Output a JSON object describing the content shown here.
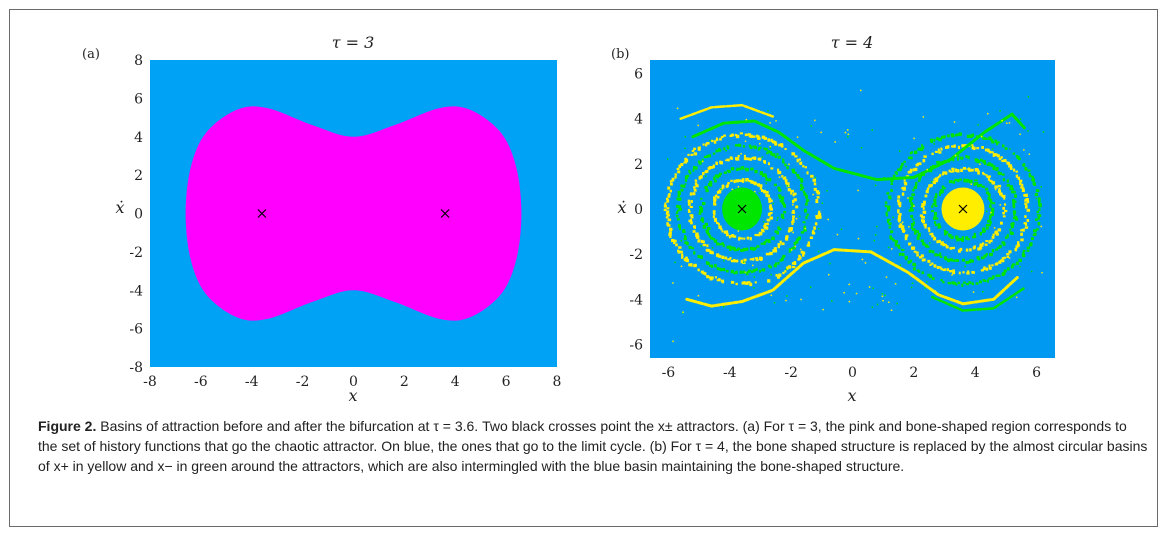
{
  "chart_data": [
    {
      "type": "heatmap",
      "panel_label": "(a)",
      "title": "τ = 3",
      "xlabel": "x",
      "ylabel": "ẋ",
      "xlim": [
        -8,
        8
      ],
      "ylim": [
        -8,
        8
      ],
      "xticks": [
        -8,
        -6,
        -4,
        -2,
        0,
        2,
        4,
        6,
        8
      ],
      "yticks": [
        -8,
        -6,
        -4,
        -2,
        0,
        2,
        4,
        6,
        8
      ],
      "colors": {
        "background_basin": "#00a2f6",
        "bone_basin": "#ff00ff",
        "marker": "#000000"
      },
      "regions": [
        {
          "basin": "limit cycle",
          "color": "#00a2f6"
        },
        {
          "basin": "chaotic attractor",
          "color": "#ff00ff",
          "shape": "bone",
          "outline": [
            [
              -6.6,
              0
            ],
            [
              -6.4,
              2.4
            ],
            [
              -5.8,
              4.2
            ],
            [
              -4.6,
              5.4
            ],
            [
              -3.4,
              5.5
            ],
            [
              -1.6,
              4.6
            ],
            [
              0,
              4
            ],
            [
              1.6,
              4.6
            ],
            [
              3.4,
              5.5
            ],
            [
              4.6,
              5.4
            ],
            [
              5.8,
              4.2
            ],
            [
              6.4,
              2.4
            ],
            [
              6.6,
              0
            ],
            [
              6.4,
              -2.4
            ],
            [
              5.8,
              -4.2
            ],
            [
              4.6,
              -5.4
            ],
            [
              3.4,
              -5.5
            ],
            [
              1.6,
              -4.6
            ],
            [
              0,
              -4
            ],
            [
              -1.6,
              -4.6
            ],
            [
              -3.4,
              -5.5
            ],
            [
              -4.6,
              -5.4
            ],
            [
              -5.8,
              -4.2
            ],
            [
              -6.4,
              -2.4
            ]
          ]
        }
      ],
      "attractors": [
        {
          "x": -3.6,
          "y": 0
        },
        {
          "x": 3.6,
          "y": 0
        }
      ]
    },
    {
      "type": "heatmap",
      "panel_label": "(b)",
      "title": "τ = 4",
      "xlabel": "x",
      "ylabel": "ẋ",
      "xlim": [
        -6.6,
        6.6
      ],
      "ylim": [
        -6.6,
        6.6
      ],
      "xticks": [
        -6,
        -4,
        -2,
        0,
        2,
        4,
        6
      ],
      "yticks": [
        -6,
        -4,
        -2,
        0,
        2,
        4,
        6
      ],
      "colors": {
        "background_basin": "#0099f2",
        "x_plus_basin": "#ffee00",
        "x_minus_basin": "#00e600",
        "marker": "#000000"
      },
      "regions": [
        {
          "basin": "x+",
          "color": "#ffee00",
          "center": [
            3.6,
            0
          ],
          "rx": 0.7,
          "ry": 0.95
        },
        {
          "basin": "x-",
          "color": "#00e600",
          "center": [
            -3.6,
            0
          ],
          "rx": 0.65,
          "ry": 0.95
        }
      ],
      "attractors": [
        {
          "x": -3.6,
          "y": 0
        },
        {
          "x": 3.6,
          "y": 0
        }
      ]
    }
  ],
  "caption": {
    "label": "Figure 2.",
    "text": "Basins of attraction before and after the bifurcation at τ = 3.6. Two black crosses point the x± attractors. (a) For τ = 3, the pink and bone-shaped region corresponds to the set of history functions that go the chaotic attractor. On blue, the ones that go to the limit cycle. (b) For τ = 4, the bone shaped structure is replaced by the almost circular basins of x+ in yellow and x− in green around the attractors, which are also intermingled with the blue basin maintaining the bone-shaped structure."
  }
}
